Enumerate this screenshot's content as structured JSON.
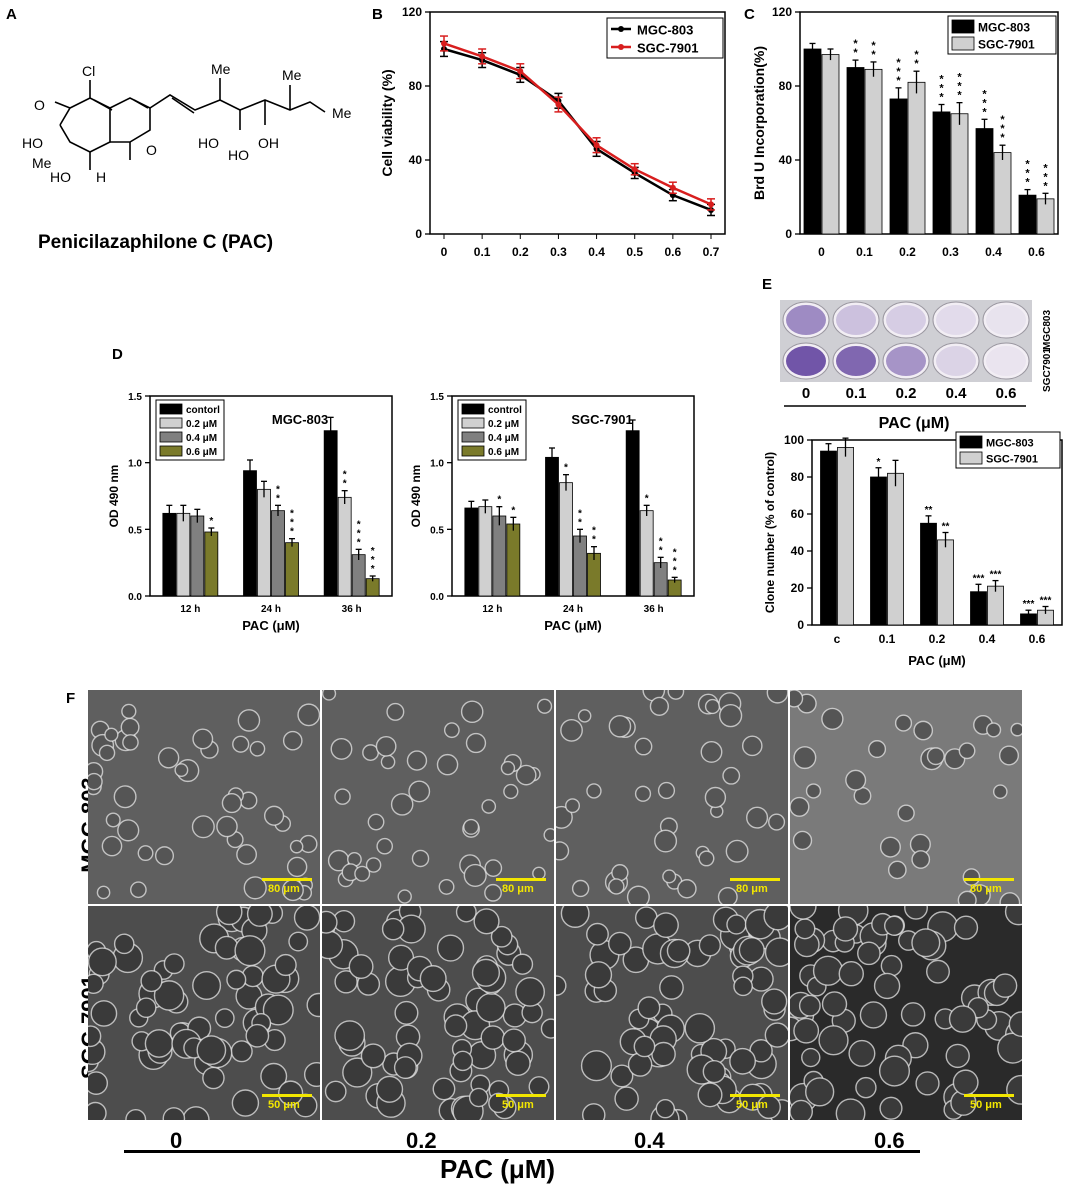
{
  "panel_labels": {
    "A": "A",
    "B": "B",
    "C": "C",
    "D": "D",
    "E": "E",
    "F": "F"
  },
  "structure": {
    "name": "Penicilazaphilone C (PAC)",
    "atoms": [
      "Cl",
      "O",
      "HO",
      "Me",
      "HO",
      "H",
      "O",
      "Me",
      "Me",
      "Me",
      "HO",
      "HO",
      "OH"
    ]
  },
  "chart_data": [
    {
      "id": "B",
      "type": "line",
      "x": [
        0,
        0.1,
        0.2,
        0.3,
        0.4,
        0.5,
        0.6,
        0.7
      ],
      "xticks": [
        "0",
        "0.1",
        "0.2",
        "0.3",
        "0.4",
        "0.5",
        "0.6",
        "0.7"
      ],
      "xlabel": "PAC (μM)",
      "ylabel": "Cell viability (%)",
      "ylim": [
        0,
        120
      ],
      "yticks": [
        "0",
        "40",
        "80",
        "120"
      ],
      "legend_position": "top-right",
      "series": [
        {
          "name": "MGC-803",
          "color": "#000000",
          "values": [
            100,
            94,
            86,
            72,
            46,
            33,
            21,
            13
          ],
          "err": [
            4,
            4,
            4,
            4,
            4,
            3,
            3,
            3
          ]
        },
        {
          "name": "SGC-7901",
          "color": "#d81e1e",
          "values": [
            103,
            96,
            88,
            70,
            48,
            35,
            25,
            16
          ],
          "err": [
            4,
            4,
            4,
            4,
            4,
            3,
            3,
            3
          ]
        }
      ]
    },
    {
      "id": "C",
      "type": "bar",
      "categories": [
        "0",
        "0.1",
        "0.2",
        "0.3",
        "0.4",
        "0.6"
      ],
      "xlabel": "PAC (μM)",
      "ylabel": "Brd U Incorporation(%)",
      "ylim": [
        0,
        120
      ],
      "yticks": [
        "0",
        "40",
        "80",
        "120"
      ],
      "legend_position": "top-right",
      "series": [
        {
          "name": "MGC-803",
          "color": "#000000",
          "values": [
            100,
            90,
            73,
            66,
            57,
            21
          ],
          "err": [
            3,
            4,
            6,
            4,
            5,
            3
          ],
          "sig": [
            "",
            "**",
            "***",
            "***",
            "***",
            "***"
          ]
        },
        {
          "name": "SGC-7901",
          "color": "#d0d0d0",
          "values": [
            97,
            89,
            82,
            65,
            44,
            19
          ],
          "err": [
            3,
            4,
            6,
            6,
            4,
            3
          ],
          "sig": [
            "",
            "**",
            "**",
            "***",
            "***",
            "***"
          ]
        }
      ]
    },
    {
      "id": "D1",
      "type": "bar",
      "title": "MGC-803",
      "categories": [
        "12 h",
        "24 h",
        "36 h"
      ],
      "xlabel": "PAC (μM)",
      "ylabel": "OD 490 nm",
      "ylim": [
        0,
        1.5
      ],
      "yticks": [
        "0.0",
        "0.5",
        "1.0",
        "1.5"
      ],
      "legend_position": "top-left",
      "series": [
        {
          "name": "contorl",
          "color": "#000000",
          "values": [
            0.62,
            0.94,
            1.24
          ],
          "err": [
            0.06,
            0.08,
            0.1
          ],
          "sig": [
            "",
            "",
            ""
          ]
        },
        {
          "name": "0.2 μM",
          "color": "#d0d0d0",
          "values": [
            0.62,
            0.8,
            0.74
          ],
          "err": [
            0.06,
            0.06,
            0.05
          ],
          "sig": [
            "",
            "",
            "**"
          ]
        },
        {
          "name": "0.4 μM",
          "color": "#808080",
          "values": [
            0.6,
            0.64,
            0.31
          ],
          "err": [
            0.05,
            0.04,
            0.04
          ],
          "sig": [
            "",
            "**",
            "***"
          ]
        },
        {
          "name": "0.6 μM",
          "color": "#7a7a2a",
          "values": [
            0.48,
            0.4,
            0.13
          ],
          "err": [
            0.03,
            0.03,
            0.02
          ],
          "sig": [
            "*",
            "***",
            "***"
          ]
        }
      ]
    },
    {
      "id": "D2",
      "type": "bar",
      "title": "SGC-7901",
      "categories": [
        "12 h",
        "24 h",
        "36 h"
      ],
      "xlabel": "PAC (μM)",
      "ylabel": "OD 490 nm",
      "ylim": [
        0,
        1.5
      ],
      "yticks": [
        "0.0",
        "0.5",
        "1.0",
        "1.5"
      ],
      "legend_position": "top-left",
      "series": [
        {
          "name": "control",
          "color": "#000000",
          "values": [
            0.66,
            1.04,
            1.24
          ],
          "err": [
            0.05,
            0.07,
            0.08
          ],
          "sig": [
            "",
            "",
            ""
          ]
        },
        {
          "name": "0.2 μM",
          "color": "#d0d0d0",
          "values": [
            0.67,
            0.85,
            0.64
          ],
          "err": [
            0.05,
            0.06,
            0.04
          ],
          "sig": [
            "",
            "*",
            "*"
          ]
        },
        {
          "name": "0.4 μM",
          "color": "#808080",
          "values": [
            0.6,
            0.45,
            0.25
          ],
          "err": [
            0.07,
            0.05,
            0.04
          ],
          "sig": [
            "*",
            "**",
            "**"
          ]
        },
        {
          "name": "0.6 μM",
          "color": "#7a7a2a",
          "values": [
            0.54,
            0.32,
            0.12
          ],
          "err": [
            0.05,
            0.05,
            0.02
          ],
          "sig": [
            "*",
            "**",
            "***"
          ]
        }
      ]
    },
    {
      "id": "E",
      "type": "bar",
      "categories": [
        "c",
        "0.1",
        "0.2",
        "0.4",
        "0.6"
      ],
      "xlabel": "PAC (μM)",
      "ylabel": "Clone number (% of control)",
      "ylim": [
        0,
        100
      ],
      "yticks": [
        "0",
        "20",
        "40",
        "60",
        "80",
        "100"
      ],
      "legend_position": "top-right",
      "series": [
        {
          "name": "MGC-803",
          "color": "#000000",
          "values": [
            94,
            80,
            55,
            18,
            6
          ],
          "err": [
            4,
            5,
            4,
            4,
            2
          ],
          "sig": [
            "",
            "*",
            "**",
            "***",
            "***"
          ]
        },
        {
          "name": "SGC-7901",
          "color": "#d0d0d0",
          "values": [
            96,
            82,
            46,
            21,
            8
          ],
          "err": [
            5,
            7,
            4,
            3,
            2
          ],
          "sig": [
            "",
            "",
            "**",
            "***",
            "***"
          ]
        }
      ]
    }
  ],
  "colony": {
    "row_labels": [
      "MGC803",
      "SGC7901"
    ],
    "doses": [
      "0",
      "0.1",
      "0.2",
      "0.4",
      "0.6"
    ],
    "axis_label": "PAC (μM)",
    "densities": [
      [
        0.55,
        0.25,
        0.18,
        0.1,
        0.06
      ],
      [
        0.85,
        0.75,
        0.5,
        0.15,
        0.05
      ]
    ]
  },
  "micrographs": {
    "row_labels": [
      "MGC-803",
      "SGC-7901"
    ],
    "scales": [
      "80 μm",
      "50 μm"
    ],
    "doses": [
      "0",
      "0.2",
      "0.4",
      "0.6"
    ],
    "axis_label": "PAC (μM)"
  }
}
